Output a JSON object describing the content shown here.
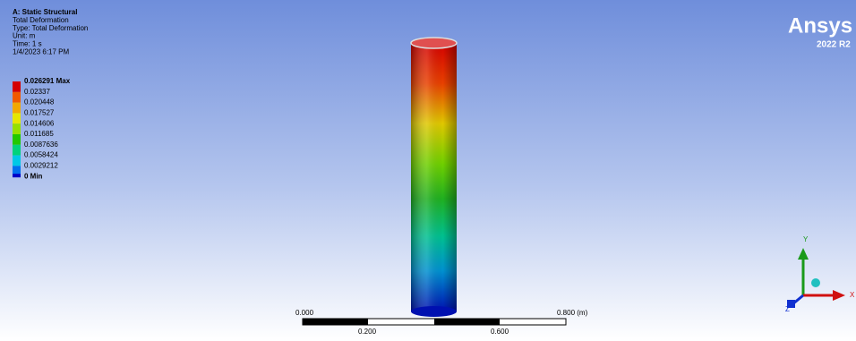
{
  "header": {
    "title": "A: Static Structural",
    "lines": [
      "Total Deformation",
      "Type: Total Deformation",
      "Unit: m",
      "Time: 1 s",
      "1/4/2023 6:17 PM"
    ]
  },
  "legend": {
    "items": [
      {
        "label": "0.026291 Max",
        "color": "#d40000"
      },
      {
        "label": "0.02337",
        "color": "#f05a00"
      },
      {
        "label": "0.020448",
        "color": "#f2a800"
      },
      {
        "label": "0.017527",
        "color": "#e6e600"
      },
      {
        "label": "0.014606",
        "color": "#96e000"
      },
      {
        "label": "0.011685",
        "color": "#22c800"
      },
      {
        "label": "0.0087636",
        "color": "#00d27c"
      },
      {
        "label": "0.0058424",
        "color": "#00c8e6"
      },
      {
        "label": "0.0029212",
        "color": "#0070ee"
      },
      {
        "label": "0 Min",
        "color": "#0000c8"
      }
    ]
  },
  "scale_bar": {
    "top_labels": [
      "0.000",
      "0.800 (m)"
    ],
    "bottom_labels": [
      "0.200",
      "0.600"
    ]
  },
  "logo": {
    "name": "Ansys",
    "version": "2022 R2"
  },
  "triad": {
    "x": "X",
    "y": "Y",
    "z": "Z"
  }
}
